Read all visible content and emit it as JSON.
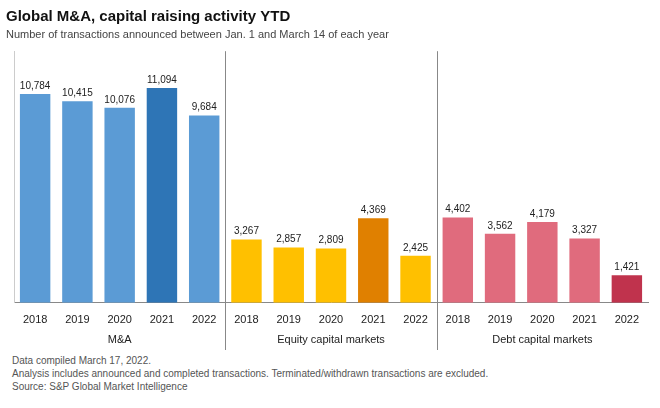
{
  "chart_data": {
    "type": "bar",
    "title": "Global M&A, capital raising activity YTD",
    "subtitle": "Number of transactions announced between Jan. 1 and March 14 of each year",
    "categories": [
      "2018",
      "2019",
      "2020",
      "2021",
      "2022",
      "2018",
      "2019",
      "2020",
      "2021",
      "2022",
      "2018",
      "2019",
      "2020",
      "2021",
      "2022"
    ],
    "series": [
      {
        "name": "M&A",
        "values": [
          10784,
          10415,
          10076,
          11094,
          9684,
          null,
          null,
          null,
          null,
          null,
          null,
          null,
          null,
          null,
          null
        ],
        "value_labels": [
          "10,784",
          "10,415",
          "10,076",
          "11,094",
          "9,684",
          null,
          null,
          null,
          null,
          null,
          null,
          null,
          null,
          null,
          null
        ],
        "colors": [
          "#5b9bd5",
          "#5b9bd5",
          "#5b9bd5",
          "#2e75b6",
          "#5b9bd5",
          null,
          null,
          null,
          null,
          null,
          null,
          null,
          null,
          null,
          null
        ]
      },
      {
        "name": "Equity capital markets",
        "values": [
          null,
          null,
          null,
          null,
          null,
          3267,
          2857,
          2809,
          4369,
          2425,
          null,
          null,
          null,
          null,
          null
        ],
        "value_labels": [
          null,
          null,
          null,
          null,
          null,
          "3,267",
          "2,857",
          "2,809",
          "4,369",
          "2,425",
          null,
          null,
          null,
          null,
          null
        ],
        "colors": [
          null,
          null,
          null,
          null,
          null,
          "#ffc000",
          "#ffc000",
          "#ffc000",
          "#e08000",
          "#ffc000",
          null,
          null,
          null,
          null,
          null
        ]
      },
      {
        "name": "Debt capital markets",
        "values": [
          null,
          null,
          null,
          null,
          null,
          null,
          null,
          null,
          null,
          null,
          4402,
          3562,
          4179,
          3327,
          1421
        ],
        "value_labels": [
          null,
          null,
          null,
          null,
          null,
          null,
          null,
          null,
          null,
          null,
          "4,402",
          "3,562",
          "4,179",
          "3,327",
          "1,421"
        ],
        "colors": [
          null,
          null,
          null,
          null,
          null,
          null,
          null,
          null,
          null,
          null,
          "#e06b7d",
          "#e06b7d",
          "#e06b7d",
          "#e06b7d",
          "#c0334d"
        ]
      }
    ],
    "annotations": [
      "Data compiled March 17, 2022.",
      "Analysis includes announced and completed transactions. Terminated/withdrawn transactions are excluded.",
      "Source: S&P Global Market Intelligence"
    ],
    "ylim": [
      0,
      13000
    ],
    "grid": false,
    "data_labels": true,
    "tick_labels": "x"
  }
}
